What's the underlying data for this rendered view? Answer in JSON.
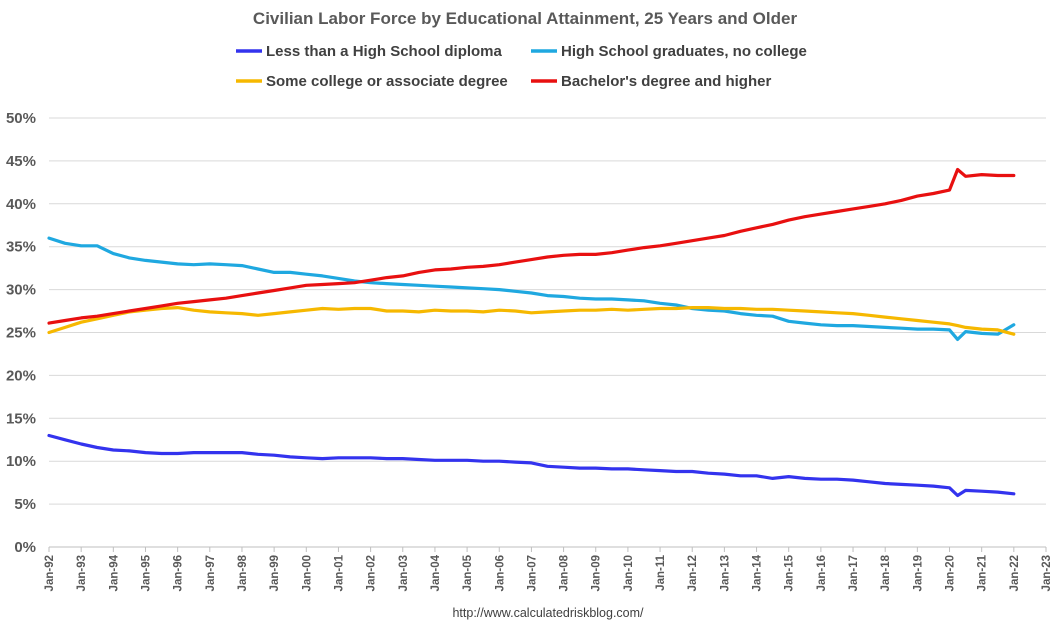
{
  "chart_data": {
    "type": "line",
    "title": "Civilian Labor Force by Educational Attainment, 25 Years and Older",
    "xlabel": "",
    "ylabel": "",
    "ylim": [
      0,
      50
    ],
    "y_ticks": [
      "0%",
      "5%",
      "10%",
      "15%",
      "20%",
      "25%",
      "30%",
      "35%",
      "40%",
      "45%",
      "50%"
    ],
    "x_ticks": [
      "Jan-92",
      "Jan-93",
      "Jan-94",
      "Jan-95",
      "Jan-96",
      "Jan-97",
      "Jan-98",
      "Jan-99",
      "Jan-00",
      "Jan-01",
      "Jan-02",
      "Jan-03",
      "Jan-04",
      "Jan-05",
      "Jan-06",
      "Jan-07",
      "Jan-08",
      "Jan-09",
      "Jan-10",
      "Jan-11",
      "Jan-12",
      "Jan-13",
      "Jan-14",
      "Jan-15",
      "Jan-16",
      "Jan-17",
      "Jan-18",
      "Jan-19",
      "Jan-20",
      "Jan-21",
      "Jan-22",
      "Jan-23"
    ],
    "grid": true,
    "legend_position": "top",
    "source": "http://www.calculatedriskblog.com/",
    "x": [
      "1992-01",
      "1992-07",
      "1993-01",
      "1993-07",
      "1994-01",
      "1994-07",
      "1995-01",
      "1995-07",
      "1996-01",
      "1996-07",
      "1997-01",
      "1997-07",
      "1998-01",
      "1998-07",
      "1999-01",
      "1999-07",
      "2000-01",
      "2000-07",
      "2001-01",
      "2001-07",
      "2002-01",
      "2002-07",
      "2003-01",
      "2003-07",
      "2004-01",
      "2004-07",
      "2005-01",
      "2005-07",
      "2006-01",
      "2006-07",
      "2007-01",
      "2007-07",
      "2008-01",
      "2008-07",
      "2009-01",
      "2009-07",
      "2010-01",
      "2010-07",
      "2011-01",
      "2011-07",
      "2012-01",
      "2012-07",
      "2013-01",
      "2013-07",
      "2014-01",
      "2014-07",
      "2015-01",
      "2015-07",
      "2016-01",
      "2016-07",
      "2017-01",
      "2017-07",
      "2018-01",
      "2018-07",
      "2019-01",
      "2019-07",
      "2020-01",
      "2020-04",
      "2020-07",
      "2021-01",
      "2021-07",
      "2022-01"
    ],
    "series": [
      {
        "name": "Less than a High School diploma",
        "color": "#3333ee",
        "values": [
          13.0,
          12.5,
          12.0,
          11.6,
          11.3,
          11.2,
          11.0,
          10.9,
          10.9,
          11.0,
          11.0,
          11.0,
          11.0,
          10.8,
          10.7,
          10.5,
          10.4,
          10.3,
          10.4,
          10.4,
          10.4,
          10.3,
          10.3,
          10.2,
          10.1,
          10.1,
          10.1,
          10.0,
          10.0,
          9.9,
          9.8,
          9.4,
          9.3,
          9.2,
          9.2,
          9.1,
          9.1,
          9.0,
          8.9,
          8.8,
          8.8,
          8.6,
          8.5,
          8.3,
          8.3,
          8.0,
          8.2,
          8.0,
          7.9,
          7.9,
          7.8,
          7.6,
          7.4,
          7.3,
          7.2,
          7.1,
          6.9,
          6.0,
          6.6,
          6.5,
          6.4,
          6.2
        ]
      },
      {
        "name": "High School graduates, no college",
        "color": "#1fa8e0",
        "values": [
          36.0,
          35.4,
          35.1,
          35.1,
          34.2,
          33.7,
          33.4,
          33.2,
          33.0,
          32.9,
          33.0,
          32.9,
          32.8,
          32.4,
          32.0,
          32.0,
          31.8,
          31.6,
          31.3,
          31.0,
          30.8,
          30.7,
          30.6,
          30.5,
          30.4,
          30.3,
          30.2,
          30.1,
          30.0,
          29.8,
          29.6,
          29.3,
          29.2,
          29.0,
          28.9,
          28.9,
          28.8,
          28.7,
          28.4,
          28.2,
          27.8,
          27.6,
          27.5,
          27.2,
          27.0,
          26.9,
          26.3,
          26.1,
          25.9,
          25.8,
          25.8,
          25.7,
          25.6,
          25.5,
          25.4,
          25.4,
          25.3,
          24.2,
          25.1,
          24.9,
          24.8,
          25.9
        ]
      },
      {
        "name": "Some college or associate degree",
        "color": "#f6b800",
        "values": [
          25.0,
          25.6,
          26.2,
          26.6,
          27.0,
          27.4,
          27.6,
          27.8,
          27.9,
          27.6,
          27.4,
          27.3,
          27.2,
          27.0,
          27.2,
          27.4,
          27.6,
          27.8,
          27.7,
          27.8,
          27.8,
          27.5,
          27.5,
          27.4,
          27.6,
          27.5,
          27.5,
          27.4,
          27.6,
          27.5,
          27.3,
          27.4,
          27.5,
          27.6,
          27.6,
          27.7,
          27.6,
          27.7,
          27.8,
          27.8,
          27.9,
          27.9,
          27.8,
          27.8,
          27.7,
          27.7,
          27.6,
          27.5,
          27.4,
          27.3,
          27.2,
          27.0,
          26.8,
          26.6,
          26.4,
          26.2,
          26.0,
          25.8,
          25.6,
          25.4,
          25.3,
          24.8
        ]
      },
      {
        "name": "Bachelor's degree and higher",
        "color": "#e81010",
        "values": [
          26.1,
          26.4,
          26.7,
          26.9,
          27.2,
          27.5,
          27.8,
          28.1,
          28.4,
          28.6,
          28.8,
          29.0,
          29.3,
          29.6,
          29.9,
          30.2,
          30.5,
          30.6,
          30.7,
          30.8,
          31.1,
          31.4,
          31.6,
          32.0,
          32.3,
          32.4,
          32.6,
          32.7,
          32.9,
          33.2,
          33.5,
          33.8,
          34.0,
          34.1,
          34.1,
          34.3,
          34.6,
          34.9,
          35.1,
          35.4,
          35.7,
          36.0,
          36.3,
          36.8,
          37.2,
          37.6,
          38.1,
          38.5,
          38.8,
          39.1,
          39.4,
          39.7,
          40.0,
          40.4,
          40.9,
          41.2,
          41.6,
          44.0,
          43.2,
          43.4,
          43.3,
          43.3
        ]
      }
    ]
  }
}
